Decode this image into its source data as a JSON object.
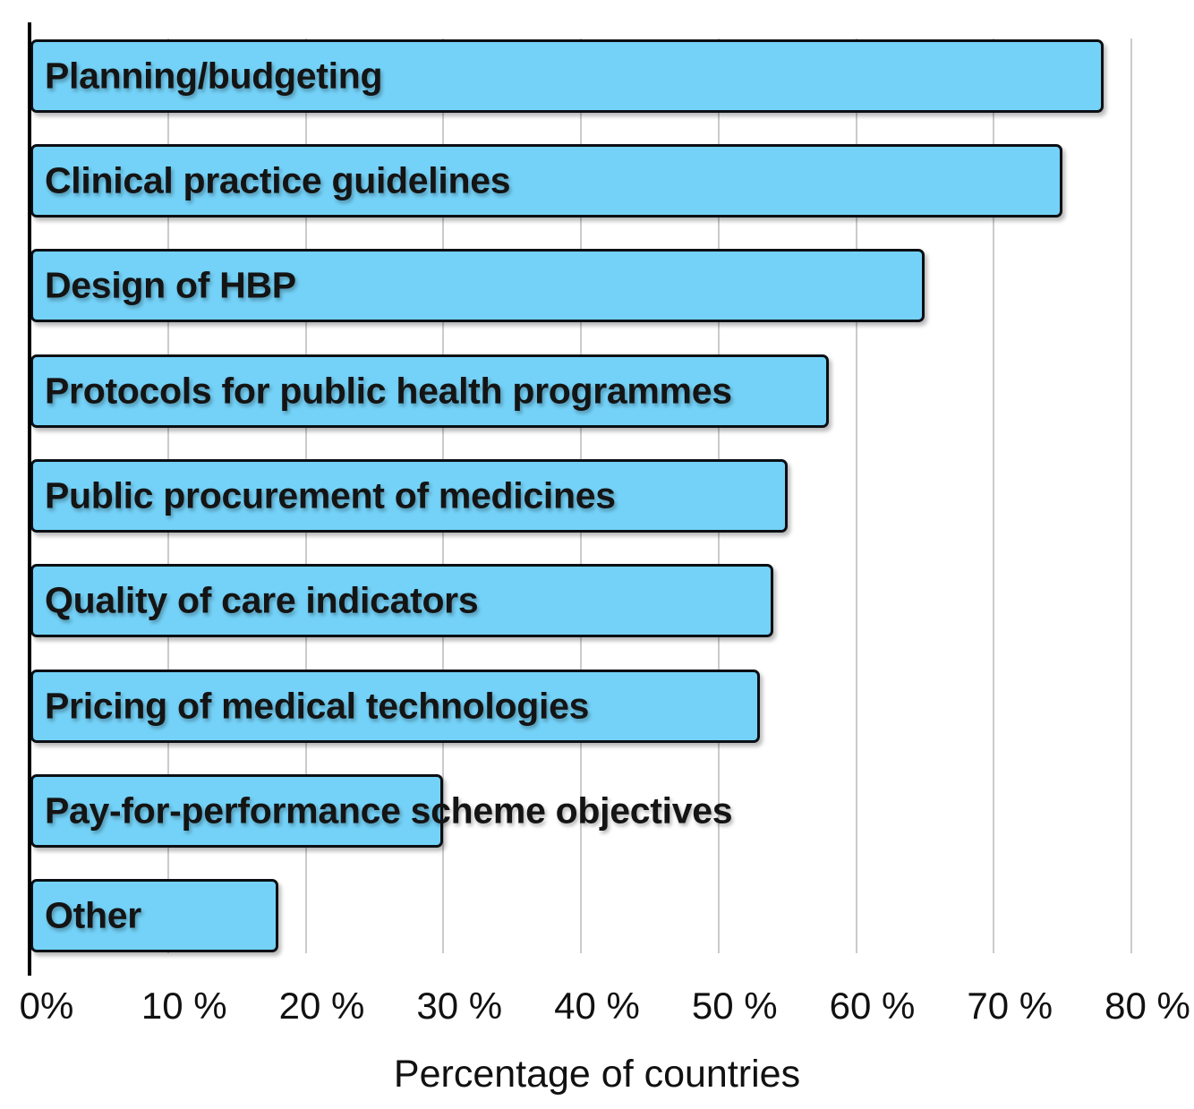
{
  "chart_data": {
    "type": "bar",
    "orientation": "horizontal",
    "title": "",
    "xlabel": "Percentage of countries",
    "ylabel": "",
    "xlim": [
      0,
      80
    ],
    "x_tick_values": [
      0,
      10,
      20,
      30,
      40,
      50,
      60,
      70,
      80
    ],
    "x_tick_labels": [
      "0%",
      "10 %",
      "20 %",
      "30 %",
      "40 %",
      "50 %",
      "60 %",
      "70 %",
      "80 %"
    ],
    "grid": "vertical gridlines every 10%, light gray",
    "legend": "none",
    "categories": [
      "Planning/budgeting",
      "Clinical practice guidelines",
      "Design of HBP",
      "Protocols for public health programmes",
      "Public procurement of medicines",
      "Quality of care indicators",
      "Pricing of medical technologies",
      "Pay-for-performance scheme objectives",
      "Other"
    ],
    "values": [
      78,
      75,
      65,
      58,
      55,
      54,
      53,
      30,
      18
    ],
    "value_unit": "percent",
    "label_position": "inside bar at left, overflowing past bar end when text is longer than bar",
    "colors": {
      "bar_fill": "#74d2f8",
      "bar_border": "#0b0f14",
      "label_text": "#141414",
      "gridline": "#cbcbcb",
      "axis_line": "#000000",
      "tick_text": "#111111",
      "background": "#ffffff"
    }
  }
}
